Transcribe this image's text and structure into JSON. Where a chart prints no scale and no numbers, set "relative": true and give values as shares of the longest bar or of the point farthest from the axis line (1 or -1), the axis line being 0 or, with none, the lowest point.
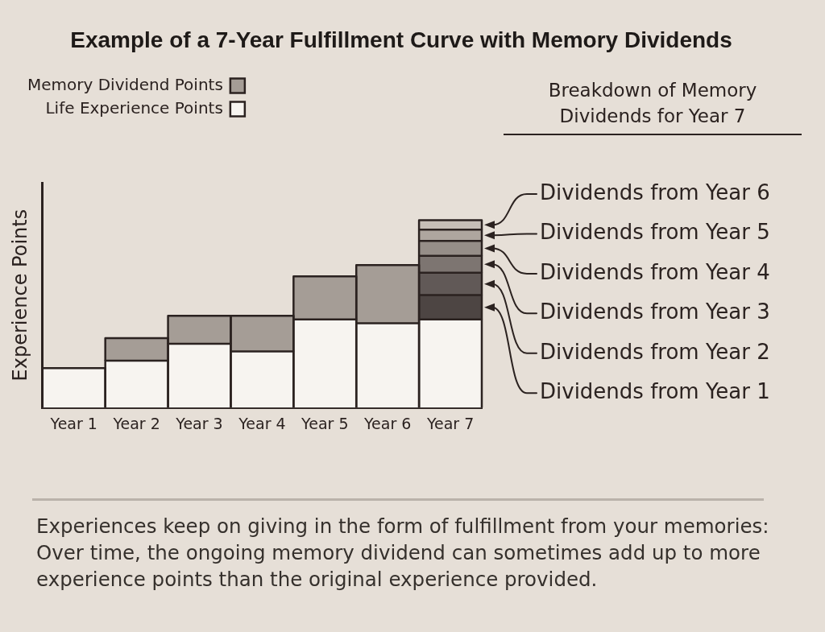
{
  "chart_data": {
    "type": "bar",
    "title": "Example of a 7-Year Fulfillment Curve with Memory Dividends",
    "ylabel": "Experience Points",
    "relative": true,
    "stacked": true,
    "legend": "top left",
    "categories": [
      "Year 1",
      "Year 2",
      "Year 3",
      "Year 4",
      "Year 5",
      "Year 6",
      "Year 7"
    ],
    "series": [
      {
        "name": "Life Experience Points",
        "color": "#f7f4f0",
        "values": [
          0.21,
          0.25,
          0.34,
          0.3,
          0.47,
          0.45,
          0.47
        ]
      },
      {
        "name": "Memory Dividend Points",
        "color": "#a59d96",
        "values": [
          null,
          0.12,
          0.15,
          0.19,
          0.23,
          0.31,
          null
        ]
      },
      {
        "color": "#4d4543",
        "values": [
          null,
          null,
          null,
          null,
          null,
          null,
          0.13
        ]
      },
      {
        "color": "#615957",
        "values": [
          null,
          null,
          null,
          null,
          null,
          null,
          0.12
        ]
      },
      {
        "color": "#7d7571",
        "values": [
          null,
          null,
          null,
          null,
          null,
          null,
          0.09
        ]
      },
      {
        "color": "#968e88",
        "values": [
          null,
          null,
          null,
          null,
          null,
          null,
          0.08
        ]
      },
      {
        "color": "#aea69f",
        "values": [
          null,
          null,
          null,
          null,
          null,
          null,
          0.06
        ]
      },
      {
        "color": "#c6beb7",
        "values": [
          null,
          null,
          null,
          null,
          null,
          null,
          0.05
        ]
      }
    ],
    "annotations": [
      "Breakdown of Memory Dividends for Year 7",
      "Dividends from Year 6",
      "Dividends from Year 5",
      "Dividends from Year 4",
      "Dividends from Year 3",
      "Dividends from Year 2",
      "Dividends from Year 1",
      "Experiences keep on giving in the form of fulfillment from your memories: Over time, the ongoing memory dividend can sometimes add up to more experience points than the original experience provided."
    ]
  }
}
